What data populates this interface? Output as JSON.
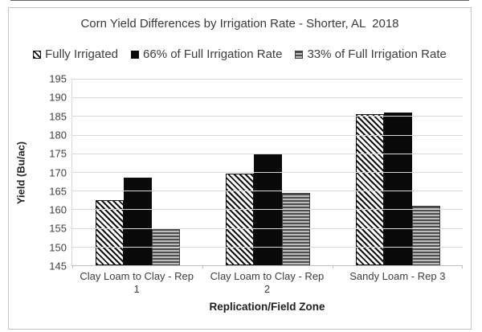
{
  "chart_data": {
    "type": "bar",
    "title": "Corn Yield Differences by Irrigation Rate - Shorter, AL  2018",
    "categories": [
      "Clay Loam to Clay - Rep 1",
      "Clay Loam to Clay - Rep 2",
      "Sandy Loam - Rep 3"
    ],
    "series": [
      {
        "name": "Fully Irrigated",
        "pattern": "diagonal-hatch",
        "values": [
          162.5,
          169.5,
          185.5
        ]
      },
      {
        "name": "66% of Full Irrigation Rate",
        "pattern": "solid-black",
        "values": [
          168.5,
          175,
          186
        ]
      },
      {
        "name": "33% of Full Irrigation Rate",
        "pattern": "horizontal-lines",
        "values": [
          155,
          164.5,
          161
        ]
      }
    ],
    "xlabel": "Replication/Field Zone",
    "ylabel": "Yield (Bu/ac)",
    "ylim": [
      145,
      195
    ],
    "ytick_step": 5,
    "yticks": [
      195,
      190,
      185,
      180,
      175,
      170,
      165,
      160,
      155,
      150,
      145
    ],
    "grid": true,
    "legend_position": "top"
  },
  "colors": {
    "gridline": "#d9d9d9",
    "axis_line": "#bfbfbf",
    "text": "#404040",
    "bar_solid": "#0a0a0a",
    "stripe_dark": "#4d4d4d",
    "stripe_light": "#bdbdbd",
    "figure_border": "#c3c3c3"
  }
}
